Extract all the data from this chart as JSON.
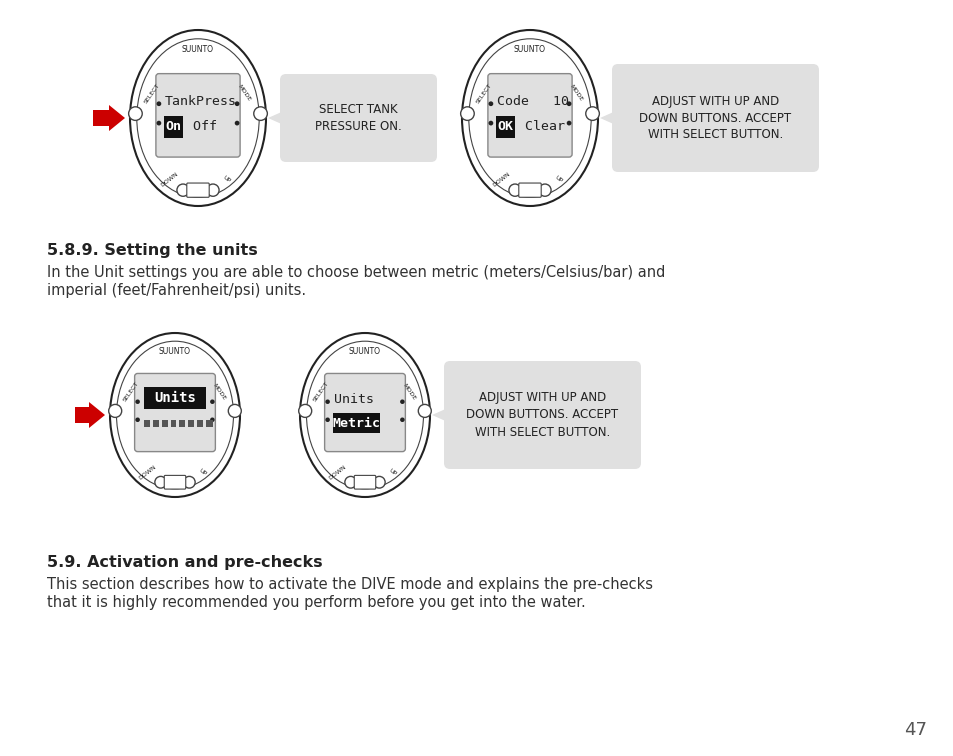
{
  "bg_color": "#ffffff",
  "page_number": "47",
  "section_589_title": "5.8.9. Setting the units",
  "section_589_body1": "In the Unit settings you are able to choose between metric (meters/Celsius/bar) and",
  "section_589_body2": "imperial (feet/Fahrenheit/psi) units.",
  "section_59_title": "5.9. Activation and pre-checks",
  "section_59_body1": "This section describes how to activate the DIVE mode and explains the pre-checks",
  "section_59_body2": "that it is highly recommended you perform before you get into the water.",
  "callout1": "SELECT TANK\nPRESSURE ON.",
  "callout2": "ADJUST WITH UP AND\nDOWN BUTTONS. ACCEPT\nWITH SELECT BUTTON.",
  "callout3": "ADJUST WITH UP AND\nDOWN BUTTONS. ACCEPT\nWITH SELECT BUTTON.",
  "watch_outer_color": "#222222",
  "watch_inner_color": "#444444",
  "screen_bg": "#e0e0e0",
  "screen_border": "#888888",
  "bubble_bg": "#e0e0e0",
  "bubble_border": "#cccccc",
  "text_color": "#222222",
  "arrow_color": "#cc0000",
  "label_color": "#333333"
}
